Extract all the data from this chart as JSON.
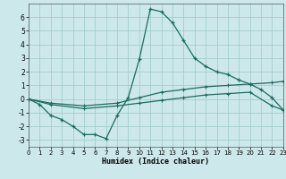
{
  "xlabel": "Humidex (Indice chaleur)",
  "background_color": "#cce8ea",
  "line_color": "#1a6b60",
  "grid_color": "#9ec8ca",
  "xlim": [
    0,
    23
  ],
  "ylim": [
    -3.5,
    7.0
  ],
  "yticks": [
    -3,
    -2,
    -1,
    0,
    1,
    2,
    3,
    4,
    5,
    6
  ],
  "xticks": [
    0,
    1,
    2,
    3,
    4,
    5,
    6,
    7,
    8,
    9,
    10,
    11,
    12,
    13,
    14,
    15,
    16,
    17,
    18,
    19,
    20,
    21,
    22,
    23
  ],
  "line1_x": [
    0,
    1,
    2,
    3,
    4,
    5,
    6,
    7,
    8,
    9,
    10,
    11,
    12,
    13,
    14,
    15,
    16,
    17,
    18,
    19,
    20,
    21,
    22,
    23
  ],
  "line1_y": [
    0.0,
    -0.4,
    -1.2,
    -1.5,
    -2.0,
    -2.6,
    -2.6,
    -2.9,
    -1.2,
    0.1,
    2.9,
    6.6,
    6.4,
    5.6,
    4.3,
    3.0,
    2.4,
    2.0,
    1.8,
    1.4,
    1.1,
    0.7,
    0.1,
    -0.8
  ],
  "line2_x": [
    0,
    2,
    5,
    8,
    10,
    12,
    14,
    16,
    18,
    20,
    22,
    23
  ],
  "line2_y": [
    0.0,
    -0.3,
    -0.5,
    -0.3,
    0.1,
    0.5,
    0.7,
    0.9,
    1.0,
    1.1,
    1.2,
    1.3
  ],
  "line3_x": [
    0,
    2,
    5,
    8,
    10,
    12,
    14,
    16,
    18,
    20,
    22,
    23
  ],
  "line3_y": [
    0.0,
    -0.4,
    -0.7,
    -0.5,
    -0.3,
    -0.1,
    0.1,
    0.3,
    0.4,
    0.5,
    -0.5,
    -0.8
  ]
}
